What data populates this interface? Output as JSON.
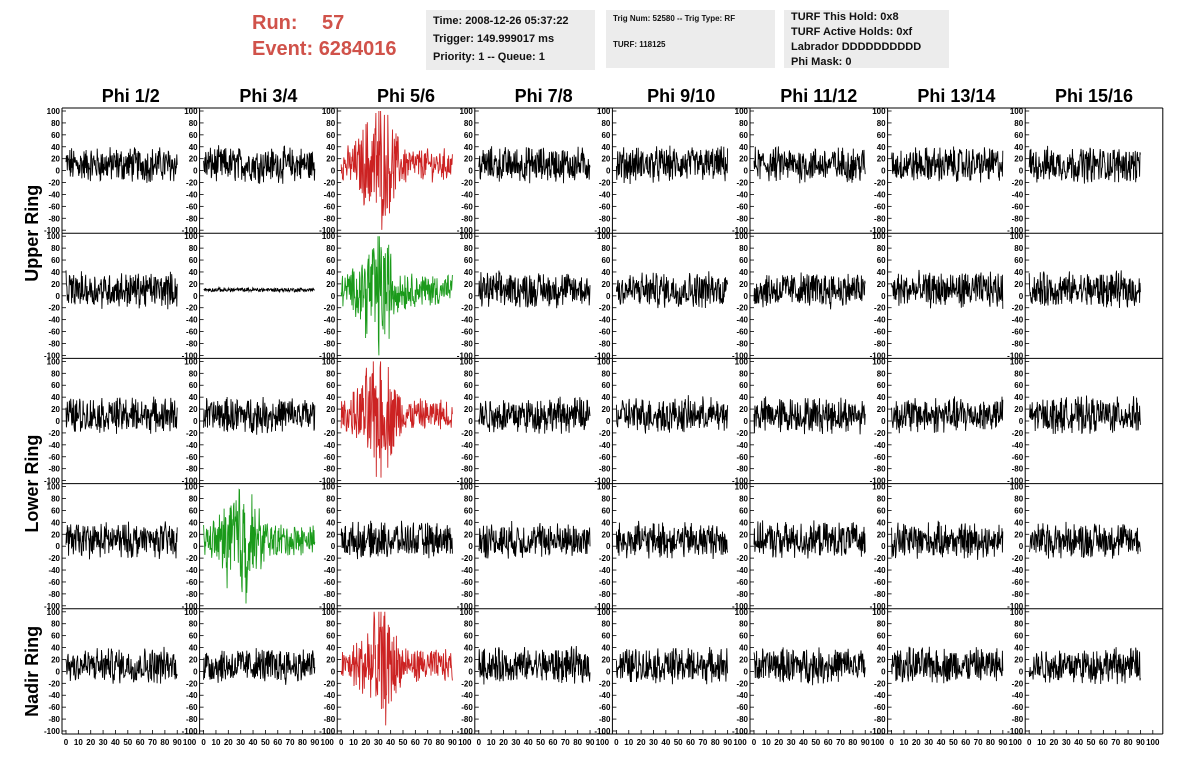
{
  "header": {
    "run_label": "Run:",
    "run_value": "57",
    "event_label": "Event:",
    "event_value": "6284016",
    "time": "Time: 2008-12-26 05:37:22",
    "trigger": "Trigger: 149.999017 ms",
    "priority": "Priority: 1 -- Queue: 1",
    "trig_num": "Trig Num: 52580 -- Trig Type: RF",
    "turf": "TURF: 118125",
    "turf_hold": "TURF This Hold: 0x8",
    "turf_active": "TURF Active Holds: 0xf",
    "labrador": "Labrador DDDDDDDDDD",
    "phi_mask": "Phi Mask: 0",
    "accent_color": "#d0524a"
  },
  "chart_data": {
    "type": "line",
    "columns": [
      "Phi 1/2",
      "Phi 3/4",
      "Phi 5/6",
      "Phi 7/8",
      "Phi 9/10",
      "Phi 11/12",
      "Phi 13/14",
      "Phi 15/16"
    ],
    "rows": [
      "Upper Ring",
      "Upper Ring",
      "Lower Ring",
      "Lower Ring",
      "Nadir Ring"
    ],
    "row_labels": [
      "Upper Ring",
      "Lower Ring",
      "Nadir Ring"
    ],
    "ylim": [
      -100,
      100
    ],
    "xlim": [
      0,
      100
    ],
    "y_ticks": [
      -100,
      -80,
      -60,
      -40,
      -20,
      0,
      20,
      40,
      60,
      80,
      100
    ],
    "x_ticks": [
      0,
      10,
      20,
      30,
      40,
      50,
      60,
      70,
      80,
      90,
      100
    ],
    "grid": false,
    "colors": {
      "normal": "#000000",
      "triggered": "#cc2222",
      "l1": "#1a9a1a"
    },
    "highlights": [
      {
        "row": 0,
        "col": 2,
        "color": "triggered"
      },
      {
        "row": 1,
        "col": 2,
        "color": "l1"
      },
      {
        "row": 2,
        "col": 2,
        "color": "triggered"
      },
      {
        "row": 3,
        "col": 1,
        "color": "l1"
      },
      {
        "row": 4,
        "col": 2,
        "color": "triggered"
      }
    ],
    "flat_panels": [
      {
        "row": 1,
        "col": 1,
        "amplitude": 3
      }
    ],
    "typical_amplitude": 25,
    "pulse_peak": 95,
    "pulse_center_x": 30
  }
}
